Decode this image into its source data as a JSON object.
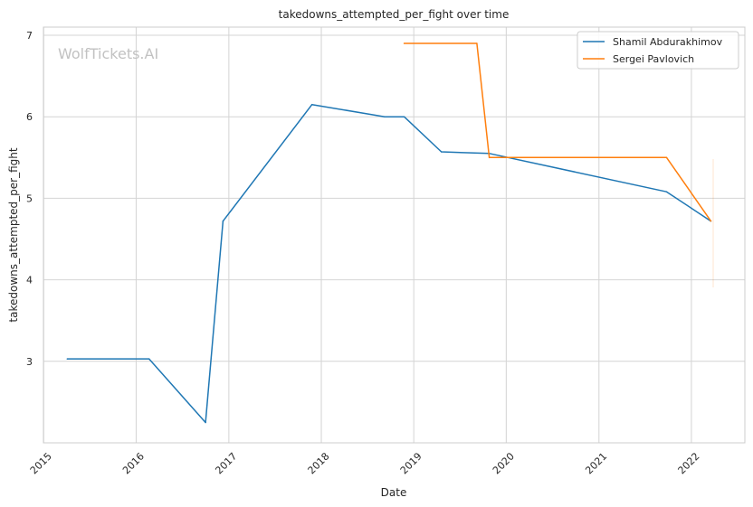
{
  "chart_data": {
    "type": "line",
    "title": "takedowns_attempted_per_fight over time",
    "xlabel": "Date",
    "ylabel": "takedowns_attempted_per_fight",
    "watermark": "WolfTickets.AI",
    "x_ticks": [
      "2015",
      "2016",
      "2017",
      "2018",
      "2019",
      "2020",
      "2021",
      "2022"
    ],
    "y_ticks": [
      "3",
      "4",
      "5",
      "6",
      "7"
    ],
    "xlim": [
      "2014-12-31",
      "2022-07-31"
    ],
    "ylim": [
      2.0,
      7.1
    ],
    "grid": true,
    "legend_position": "top-right",
    "series": [
      {
        "name": "Shamil Abdurakhimov",
        "color": "#1f77b4",
        "points": [
          [
            "2015-04-04",
            3.03
          ],
          [
            "2016-02-21",
            3.03
          ],
          [
            "2016-10-01",
            2.25
          ],
          [
            "2016-12-09",
            4.72
          ],
          [
            "2017-11-25",
            6.15
          ],
          [
            "2018-09-08",
            6.0
          ],
          [
            "2018-11-24",
            6.0
          ],
          [
            "2019-04-20",
            5.57
          ],
          [
            "2019-10-26",
            5.55
          ],
          [
            "2021-09-25",
            5.08
          ],
          [
            "2022-03-19",
            4.72
          ]
        ]
      },
      {
        "name": "Sergei Pavlovich",
        "color": "#ff7f0e",
        "points": [
          [
            "2018-11-24",
            6.9
          ],
          [
            "2019-09-07",
            6.9
          ],
          [
            "2019-10-26",
            5.5
          ],
          [
            "2021-09-25",
            5.5
          ],
          [
            "2022-03-19",
            4.72
          ]
        ]
      }
    ]
  }
}
